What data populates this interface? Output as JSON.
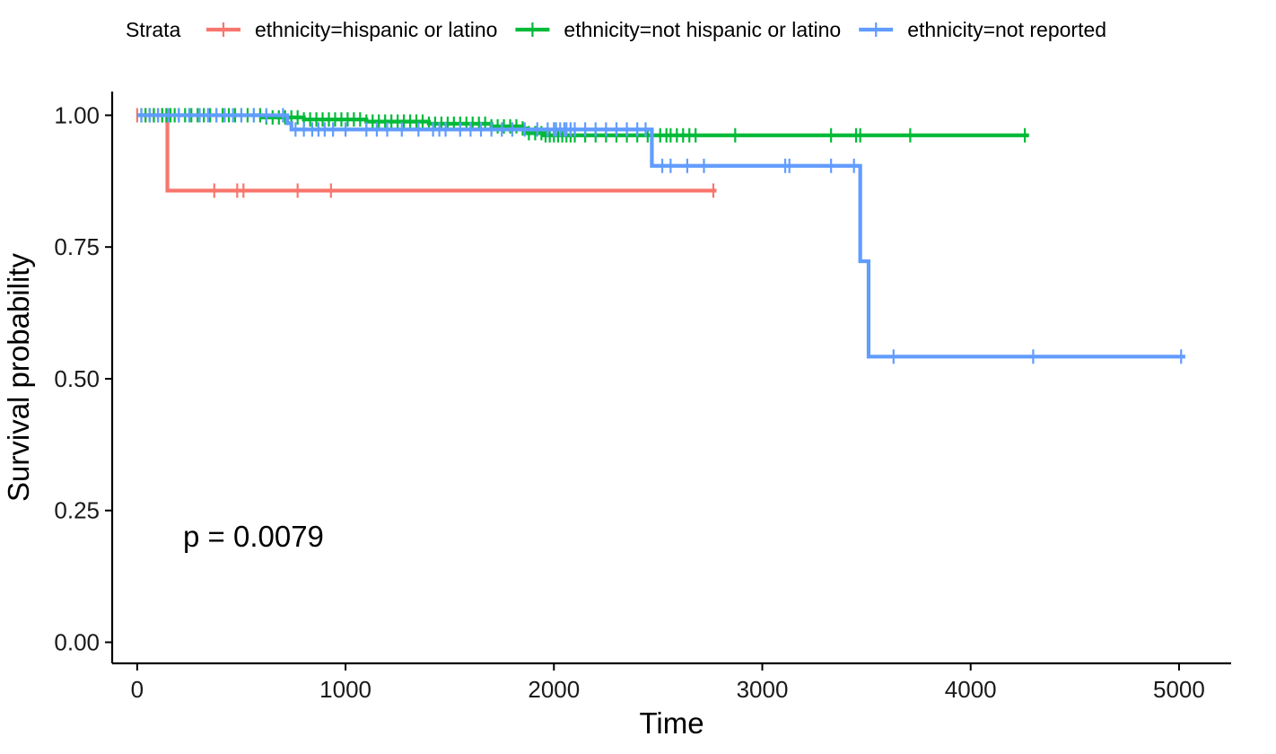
{
  "chart_data": {
    "type": "line",
    "subtype": "kaplan-meier",
    "title": "",
    "xlabel": "Time",
    "ylabel": "Survival probability",
    "xlim": [
      -120,
      5250
    ],
    "ylim": [
      -0.04,
      1.045
    ],
    "xticks": [
      0,
      1000,
      2000,
      3000,
      4000,
      5000
    ],
    "xtick_labels": [
      "0",
      "1000",
      "2000",
      "3000",
      "4000",
      "5000"
    ],
    "yticks": [
      0,
      0.25,
      0.5,
      0.75,
      1.0
    ],
    "ytick_labels": [
      "0.00",
      "0.25",
      "0.50",
      "0.75",
      "1.00"
    ],
    "grid": false,
    "legend": {
      "title": "Strata",
      "position": "top"
    },
    "annotation": "p = 0.0079",
    "series": [
      {
        "name": "ethnicity=hispanic or latino",
        "color": "#F8766D",
        "steps": [
          [
            0,
            1.0
          ],
          [
            145,
            0.857
          ],
          [
            2780,
            0.857
          ]
        ],
        "censors": [
          0,
          40,
          80,
          120,
          370,
          480,
          510,
          770,
          930,
          2765
        ]
      },
      {
        "name": "ethnicity=not hispanic or latino",
        "color": "#00BA38",
        "steps": [
          [
            0,
            1.0
          ],
          [
            600,
            0.996
          ],
          [
            800,
            0.992
          ],
          [
            1100,
            0.988
          ],
          [
            1400,
            0.984
          ],
          [
            1700,
            0.979
          ],
          [
            1850,
            0.975
          ],
          [
            1870,
            0.966
          ],
          [
            1950,
            0.962
          ],
          [
            4280,
            0.962
          ]
        ],
        "censors": [
          20,
          40,
          60,
          80,
          100,
          120,
          140,
          160,
          180,
          200,
          230,
          260,
          290,
          320,
          350,
          380,
          410,
          440,
          470,
          500,
          530,
          560,
          590,
          620,
          650,
          680,
          710,
          740,
          770,
          800,
          830,
          860,
          890,
          920,
          950,
          980,
          1010,
          1040,
          1070,
          1100,
          1130,
          1160,
          1190,
          1220,
          1250,
          1280,
          1310,
          1340,
          1370,
          1400,
          1430,
          1460,
          1490,
          1520,
          1550,
          1580,
          1610,
          1640,
          1670,
          1700,
          1730,
          1760,
          1790,
          1820,
          1850,
          1880,
          1910,
          1940,
          1960,
          1980,
          2000,
          2020,
          2040,
          2060,
          2080,
          2100,
          2150,
          2200,
          2250,
          2300,
          2350,
          2400,
          2450,
          2510,
          2540,
          2560,
          2590,
          2620,
          2650,
          2680,
          2870,
          3330,
          3450,
          3470,
          3710,
          4260
        ]
      },
      {
        "name": "ethnicity=not reported",
        "color": "#619CFF",
        "steps": [
          [
            0,
            1.0
          ],
          [
            720,
            0.985
          ],
          [
            740,
            0.973
          ],
          [
            2465,
            0.973
          ],
          [
            2470,
            0.904
          ],
          [
            3465,
            0.904
          ],
          [
            3470,
            0.723
          ],
          [
            3505,
            0.723
          ],
          [
            3510,
            0.542
          ],
          [
            5030,
            0.542
          ]
        ],
        "censors": [
          20,
          60,
          100,
          150,
          200,
          250,
          300,
          340,
          380,
          420,
          460,
          500,
          560,
          620,
          700,
          760,
          800,
          840,
          870,
          900,
          940,
          1000,
          1100,
          1150,
          1200,
          1270,
          1350,
          1420,
          1450,
          1480,
          1550,
          1600,
          1650,
          1700,
          1750,
          1800,
          1860,
          1920,
          1970,
          2000,
          2010,
          2030,
          2050,
          2060,
          2080,
          2100,
          2150,
          2200,
          2250,
          2300,
          2350,
          2400,
          2440,
          2520,
          2560,
          2640,
          2720,
          3110,
          3130,
          3330,
          3440,
          3630,
          4300,
          5010
        ]
      }
    ]
  }
}
